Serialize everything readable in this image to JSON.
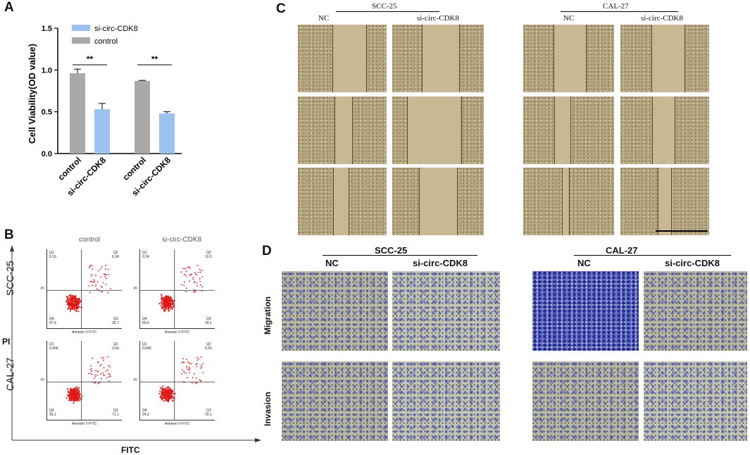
{
  "panels": {
    "a": "A",
    "b": "B",
    "c": "C",
    "d": "D"
  },
  "chart_data": {
    "type": "bar",
    "ylabel": "Cell Viability(OD value)",
    "ylim": [
      0,
      1.5
    ],
    "yticks": [
      "0.0",
      "0.5",
      "1.0",
      "1.5"
    ],
    "categories": [
      "control",
      "si-circ-CDK8",
      "control",
      "si-circ-CDK8"
    ],
    "values": [
      0.96,
      0.53,
      0.87,
      0.48
    ],
    "errors": [
      0.05,
      0.07,
      0.005,
      0.02
    ],
    "bar_colors": [
      "#a9a9a9",
      "#9cc3f0",
      "#a9a9a9",
      "#9cc3f0"
    ],
    "legend": [
      {
        "label": "si-circ-CDK8",
        "color": "#9cc3f0"
      },
      {
        "label": "control",
        "color": "#a9a9a9"
      }
    ],
    "significance": [
      "**",
      "**"
    ],
    "grid": false
  },
  "flow": {
    "col_labels": [
      "control",
      "si-circ-CDK8"
    ],
    "row_labels": [
      "SCC-25",
      "CAL-27"
    ],
    "x_axis": "FITC",
    "y_axis": "PI",
    "inner_xlabel": "Annexin V FITC",
    "inner_ylabel": "PI",
    "plots": [
      {
        "q1": "Q1",
        "q1v": "0.19",
        "q2": "Q2",
        "q2v": "6.34",
        "q3": "Q3",
        "q3v": "35.7",
        "q4": "Q4",
        "q4v": "57.8"
      },
      {
        "q1": "Q1",
        "q1v": "0.24",
        "q2": "Q2",
        "q2v": "10.5",
        "q3": "Q3",
        "q3v": "39.1",
        "q4": "Q4",
        "q4v": "50.6"
      },
      {
        "q1": "Q1",
        "q1v": "0.058",
        "q2": "Q2",
        "q2v": "3.64",
        "q3": "Q3",
        "q3v": "71.1",
        "q4": "Q4",
        "q4v": "25.2"
      },
      {
        "q1": "Q1",
        "q1v": "0.049",
        "q2": "Q2",
        "q2v": "5.60",
        "q3": "Q3",
        "q3v": "70.1",
        "q4": "Q4",
        "q4v": "24.2"
      }
    ]
  },
  "wound": {
    "groups": [
      {
        "title": "SCC-25",
        "nc": "NC",
        "si": "si-circ-CDK8"
      },
      {
        "title": "CAL-27",
        "nc": "NC",
        "si": "si-circ-CDK8"
      }
    ]
  },
  "transwell": {
    "groups": [
      {
        "title": "SCC-25",
        "nc": "NC",
        "si": "si-circ-CDK8"
      },
      {
        "title": "CAL-27",
        "nc": "NC",
        "si": "si-circ-CDK8"
      }
    ],
    "rows": [
      "Migration",
      "Invasion"
    ]
  }
}
